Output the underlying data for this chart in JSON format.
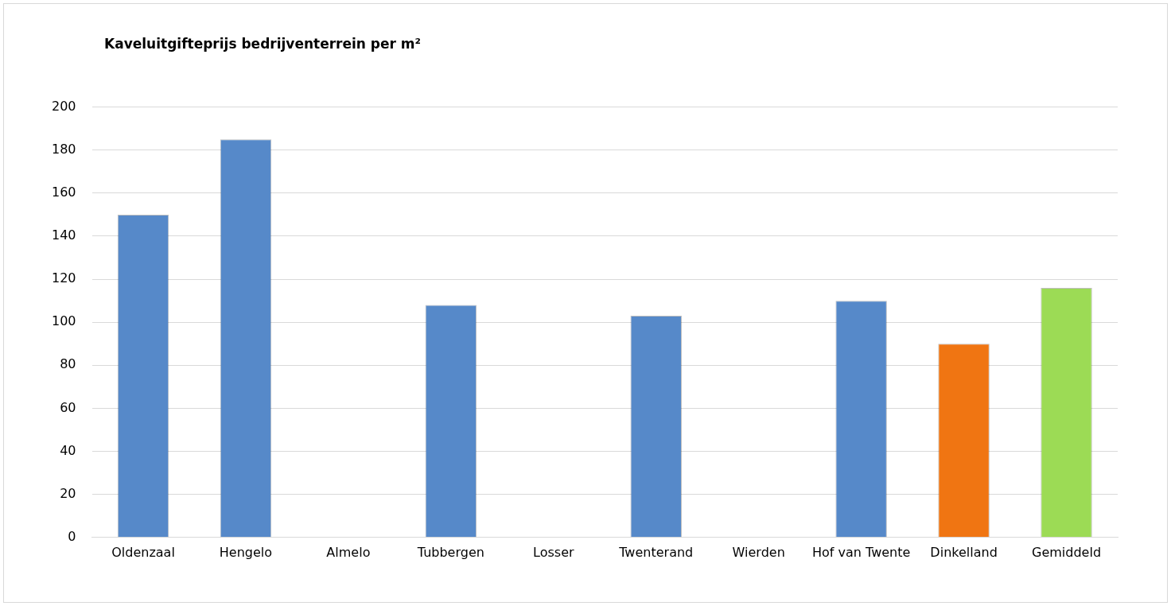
{
  "chart_data": {
    "type": "bar",
    "title": "Kaveluitgifteprijs bedrijventerrein per m²",
    "categories": [
      "Oldenzaal",
      "Hengelo",
      "Almelo",
      "Tubbergen",
      "Losser",
      "Twenterand",
      "Wierden",
      "Hof van Twente",
      "Dinkelland",
      "Gemiddeld"
    ],
    "values": [
      150,
      185,
      null,
      108,
      null,
      103,
      null,
      110,
      90,
      116
    ],
    "colors": [
      "#5689c9",
      "#5689c9",
      "#5689c9",
      "#5689c9",
      "#5689c9",
      "#5689c9",
      "#5689c9",
      "#5689c9",
      "#f07512",
      "#9cdb55"
    ],
    "ylim": [
      0,
      200
    ],
    "yticks": [
      0,
      20,
      40,
      60,
      80,
      100,
      120,
      140,
      160,
      180,
      200
    ],
    "grid": "y",
    "legend": false
  }
}
